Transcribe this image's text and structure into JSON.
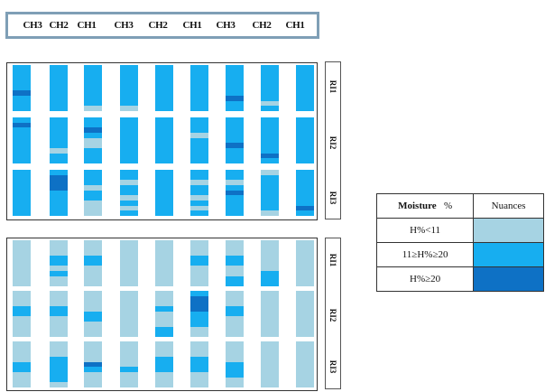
{
  "palette": {
    "light": "#a6d3e3",
    "medium": "#17aef0",
    "dark": "#0e71c5"
  },
  "topbar": {
    "labels": [
      "CH3",
      "CH2",
      "CH1",
      "CH3",
      "CH2",
      "CH1",
      "CH3",
      "CH2",
      "CH1"
    ]
  },
  "panel_a": {
    "side_labels": [
      "RI1",
      "RI2",
      "RI3"
    ],
    "grid": [
      [
        "mmmmmdmmm",
        "mmmmmmmmm",
        "mmmmmmmml",
        "mmmmmmmml",
        "mmmmmmmmm",
        "mmmmmmmmm",
        "mmmmmmdmm",
        "mmmmmmmlm",
        "mmmmmmmmm"
      ],
      [
        "mdmmmmmmm",
        "mmmmmmlmm",
        "mmdmllmmm",
        "mmmmmmmmm",
        "mmmmmmmmm",
        "mmmlmmmmm",
        "mmmmmdmmm",
        "mmmmmmmdm",
        "mmmmmmmmm"
      ],
      [
        "mmmmmmmmm",
        "mdddmmmmm",
        "mmmlmmlll",
        "mmlmmlmlm",
        "mmmmmmmmm",
        "mmlmmlmlm",
        "mmlmdmmmm",
        "lmmmmmmml",
        "mmmmmmmdm"
      ]
    ]
  },
  "panel_b": {
    "side_labels": [
      "RI1",
      "RI2",
      "RI3"
    ],
    "grid": [
      [
        "lllllllll",
        "lllmmlmll",
        "lllmmllll",
        "lllllllll",
        "lllllllll",
        "lllmmllll",
        "lllmmllmm",
        "llllllmmm",
        "lllllllll"
      ],
      [
        "lllmmllll",
        "lllmmllll",
        "llllmmlll",
        "lllllllll",
        "lllmlllmm",
        "mdddmmmll",
        "lllmmllll",
        "lllllllll",
        "lllllllll"
      ],
      [
        "llllmmlll",
        "lllmmmmml",
        "lllldmlll",
        "lllllmlll",
        "lllmmmlll",
        "lllmmmlll",
        "llllmmmll",
        "lllllllll",
        "lllllllll"
      ]
    ]
  },
  "legend": {
    "header_moisture": "Moisture",
    "header_unit": "%",
    "header_nuances": "Nuances",
    "rows": [
      {
        "label": "H%<11",
        "level": "light"
      },
      {
        "label": "11≥H%≥20",
        "level": "medium"
      },
      {
        "label": "H%≥20",
        "level": "dark"
      }
    ]
  }
}
